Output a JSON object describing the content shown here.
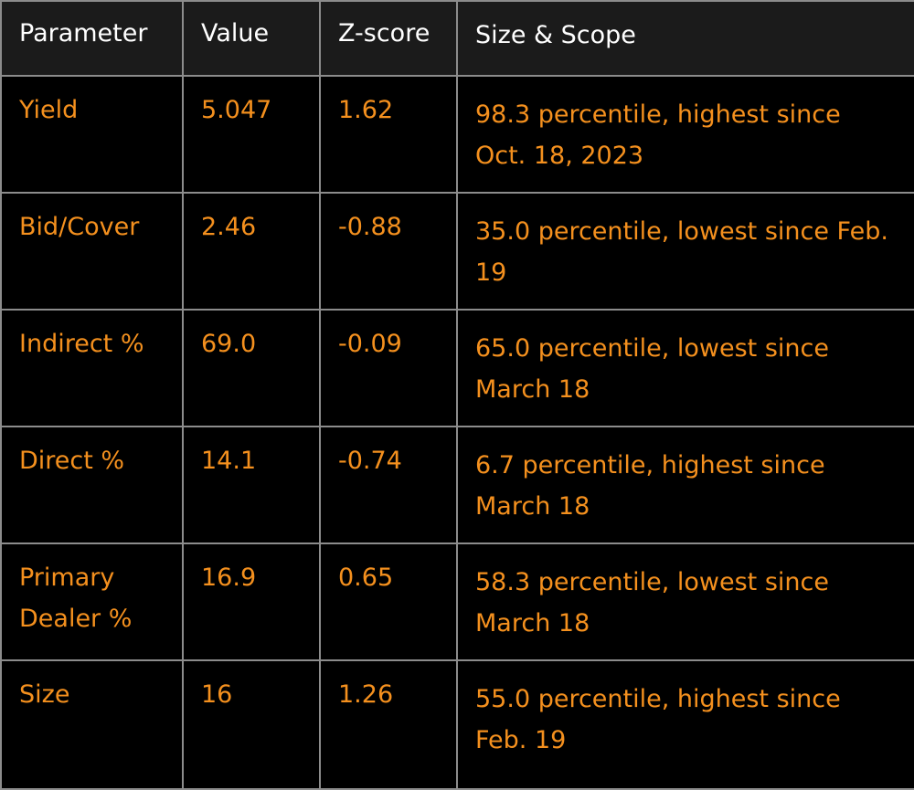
{
  "chart_data": {
    "type": "table",
    "columns": [
      "Parameter",
      "Value",
      "Z-score",
      "Size & Scope"
    ],
    "rows": [
      {
        "parameter": "Yield",
        "value": "5.047",
        "zscore": "1.62",
        "scope": "98.3 percentile, highest since Oct. 18, 2023"
      },
      {
        "parameter": "Bid/Cover",
        "value": "2.46",
        "zscore": "-0.88",
        "scope": "35.0 percentile, lowest since Feb. 19"
      },
      {
        "parameter": "Indirect %",
        "value": "69.0",
        "zscore": "-0.09",
        "scope": "65.0 percentile, lowest since March 18"
      },
      {
        "parameter": "Direct %",
        "value": "14.1",
        "zscore": "-0.74",
        "scope": "6.7 percentile, highest since March 18"
      },
      {
        "parameter": "Primary Dealer %",
        "value": "16.9",
        "zscore": "0.65",
        "scope": "58.3 percentile, lowest since March 18"
      },
      {
        "parameter": "Size",
        "value": "16",
        "zscore": "1.26",
        "scope": "55.0 percentile, highest since Feb. 19"
      }
    ]
  },
  "colors": {
    "background": "#000000",
    "header_background": "#1b1b1b",
    "header_text": "#ffffff",
    "cell_text": "#f4901e",
    "grid": "#8c8c8c"
  }
}
